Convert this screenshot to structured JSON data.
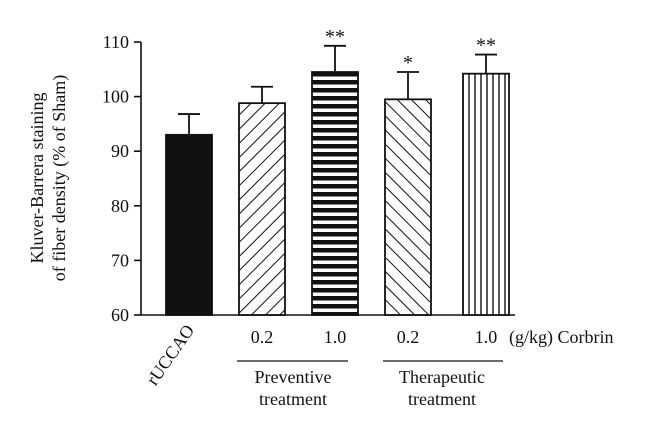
{
  "chart_data": {
    "type": "bar",
    "ylabel_line1": "Kluver-Barrera staining",
    "ylabel_line2": "of fiber density (% of Sham)",
    "ylim": [
      60,
      110
    ],
    "yticks": [
      60,
      70,
      80,
      90,
      100,
      110
    ],
    "unit_label": "(g/kg) Corbrin",
    "groups": [
      {
        "label_line1": "Preventive",
        "label_line2": "treatment"
      },
      {
        "label_line1": "Therapeutic",
        "label_line2": "treatment"
      }
    ],
    "bars": [
      {
        "category": "rUCCAO",
        "value": 93.0,
        "error": 3.8,
        "pattern": "solid",
        "sig": ""
      },
      {
        "category": "0.2",
        "value": 98.8,
        "error": 3.0,
        "pattern": "diag-up",
        "sig": ""
      },
      {
        "category": "1.0",
        "value": 104.5,
        "error": 4.8,
        "pattern": "horizontal",
        "sig": "**"
      },
      {
        "category": "0.2",
        "value": 99.5,
        "error": 5.0,
        "pattern": "diag-down",
        "sig": "*"
      },
      {
        "category": "1.0",
        "value": 104.2,
        "error": 3.5,
        "pattern": "vertical",
        "sig": "**"
      }
    ]
  }
}
